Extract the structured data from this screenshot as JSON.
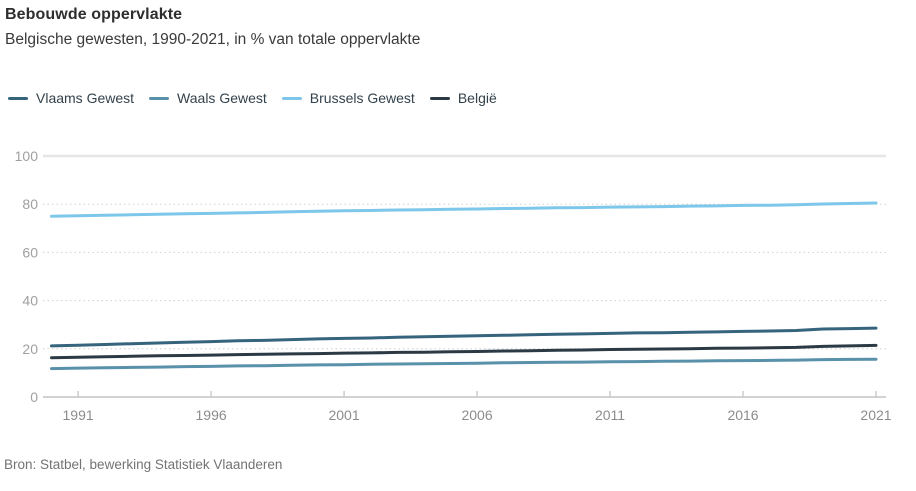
{
  "header": {
    "title": "Bebouwde oppervlakte",
    "subtitle": "Belgische gewesten, 1990-2021, in % van totale oppervlakte"
  },
  "source": "Bron: Statbel, bewerking Statistiek Vlaanderen",
  "legend": [
    {
      "label": "Vlaams Gewest",
      "color": "#35647c"
    },
    {
      "label": "Waals Gewest",
      "color": "#5990aa"
    },
    {
      "label": "Brussels Gewest",
      "color": "#7cc7ea"
    },
    {
      "label": "België",
      "color": "#2b3a45"
    }
  ],
  "colors": {
    "grid_dotted": "#cfcfcf",
    "grid_top": "#e6e6e6",
    "axis": "#c4c4c4",
    "tick_label_y": "#a0a0a0",
    "tick_label_x": "#8c8c8c"
  },
  "chart_data": {
    "type": "line",
    "title": "Bebouwde oppervlakte",
    "subtitle": "Belgische gewesten, 1990-2021, in % van totale oppervlakte",
    "xlabel": "",
    "ylabel": "% van totale oppervlakte",
    "xlim": [
      1990,
      2021
    ],
    "ylim": [
      0,
      100
    ],
    "xticks": [
      1991,
      1996,
      2001,
      2006,
      2011,
      2016,
      2021
    ],
    "yticks": [
      0,
      20,
      40,
      60,
      80,
      100
    ],
    "grid": "horizontal-dotted",
    "legend_position": "top",
    "x": [
      1990,
      1991,
      1992,
      1993,
      1994,
      1995,
      1996,
      1997,
      1998,
      1999,
      2000,
      2001,
      2002,
      2003,
      2004,
      2005,
      2006,
      2007,
      2008,
      2009,
      2010,
      2011,
      2012,
      2013,
      2014,
      2015,
      2016,
      2017,
      2018,
      2019,
      2020,
      2021
    ],
    "series": [
      {
        "name": "Vlaams Gewest",
        "color": "#35647c",
        "values": [
          21.2,
          21.5,
          21.8,
          22.1,
          22.4,
          22.7,
          23.0,
          23.3,
          23.5,
          23.8,
          24.1,
          24.3,
          24.5,
          24.8,
          25.0,
          25.2,
          25.4,
          25.6,
          25.8,
          26.0,
          26.2,
          26.4,
          26.6,
          26.7,
          26.9,
          27.0,
          27.2,
          27.4,
          27.6,
          28.2,
          28.4,
          28.6
        ]
      },
      {
        "name": "Waals Gewest",
        "color": "#5990aa",
        "values": [
          11.8,
          12.0,
          12.1,
          12.3,
          12.4,
          12.6,
          12.7,
          12.9,
          13.0,
          13.2,
          13.3,
          13.4,
          13.6,
          13.7,
          13.8,
          13.9,
          14.0,
          14.2,
          14.3,
          14.4,
          14.5,
          14.6,
          14.7,
          14.8,
          14.9,
          15.0,
          15.1,
          15.2,
          15.3,
          15.5,
          15.6,
          15.7
        ]
      },
      {
        "name": "Brussels Gewest",
        "color": "#7cc7ea",
        "values": [
          75.0,
          75.2,
          75.4,
          75.6,
          75.8,
          76.0,
          76.2,
          76.4,
          76.6,
          76.9,
          77.1,
          77.3,
          77.4,
          77.6,
          77.7,
          77.9,
          78.0,
          78.2,
          78.3,
          78.5,
          78.6,
          78.8,
          78.9,
          79.0,
          79.2,
          79.3,
          79.5,
          79.6,
          79.8,
          80.1,
          80.3,
          80.5
        ]
      },
      {
        "name": "België",
        "color": "#2b3a45",
        "values": [
          16.3,
          16.5,
          16.7,
          16.9,
          17.1,
          17.2,
          17.4,
          17.6,
          17.7,
          17.9,
          18.0,
          18.2,
          18.3,
          18.5,
          18.6,
          18.8,
          18.9,
          19.1,
          19.2,
          19.4,
          19.5,
          19.7,
          19.8,
          19.9,
          20.0,
          20.2,
          20.3,
          20.4,
          20.6,
          21.0,
          21.2,
          21.4
        ]
      }
    ]
  }
}
